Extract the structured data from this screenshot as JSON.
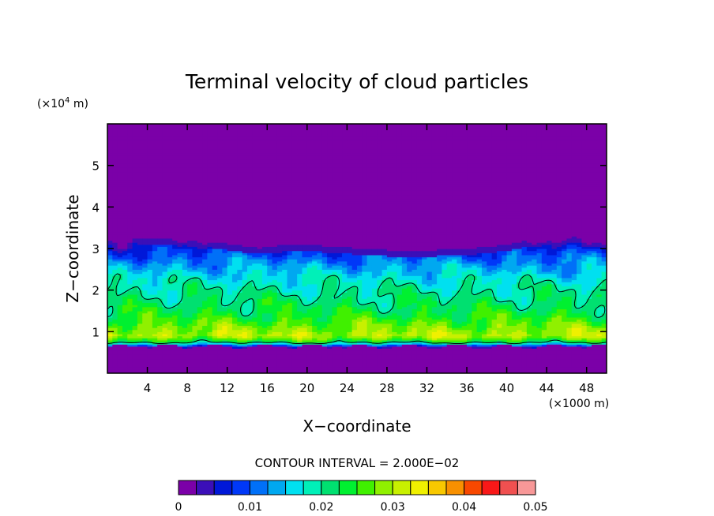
{
  "chart_data": {
    "type": "heatmap",
    "title": "Terminal velocity of cloud particles",
    "xlabel": "X−coordinate",
    "ylabel": "Z−coordinate",
    "x_unit": "(×1000 m)",
    "y_unit_base": "(×10",
    "y_unit_exp": "4",
    "y_unit_tail": " m)",
    "xlim": [
      0,
      50
    ],
    "ylim": [
      0,
      6
    ],
    "x_ticks": [
      4,
      8,
      12,
      16,
      20,
      24,
      28,
      32,
      36,
      40,
      44,
      48
    ],
    "y_ticks": [
      1,
      2,
      3,
      4,
      5
    ],
    "contour_interval_text": "CONTOUR INTERVAL = 2.000E−02",
    "colorbar": {
      "min": 0,
      "max": 0.05,
      "levels": 20,
      "labels": [
        "0",
        "0.01",
        "0.02",
        "0.03",
        "0.04",
        "0.05"
      ],
      "colors": [
        "#7b00a8",
        "#3b0fb8",
        "#0018d8",
        "#0038f8",
        "#0070f8",
        "#00a8f0",
        "#00e0f0",
        "#00f0b8",
        "#00e070",
        "#00f030",
        "#40f000",
        "#90f000",
        "#c8f000",
        "#f0f000",
        "#f8c800",
        "#f89000",
        "#f84800",
        "#f81818",
        "#f05050",
        "#f89898"
      ]
    },
    "field_profile": {
      "z": [
        0.0,
        0.6,
        0.75,
        0.9,
        1.1,
        1.4,
        1.7,
        2.0,
        2.3,
        2.6,
        2.9,
        3.1,
        3.3,
        6.0
      ],
      "value": [
        0.0,
        0.0,
        0.022,
        0.0305,
        0.028,
        0.024,
        0.0215,
        0.0195,
        0.017,
        0.0135,
        0.009,
        0.005,
        0.0,
        0.0
      ]
    },
    "cloud_top": {
      "x": [
        0,
        6,
        10,
        14,
        20,
        26,
        30,
        36,
        40,
        44,
        50
      ],
      "z": [
        3.3,
        3.25,
        3.2,
        3.05,
        3.1,
        3.0,
        2.95,
        3.0,
        3.1,
        3.3,
        3.3
      ]
    },
    "cloud_base_z": 0.65,
    "contour_value": 0.02
  }
}
